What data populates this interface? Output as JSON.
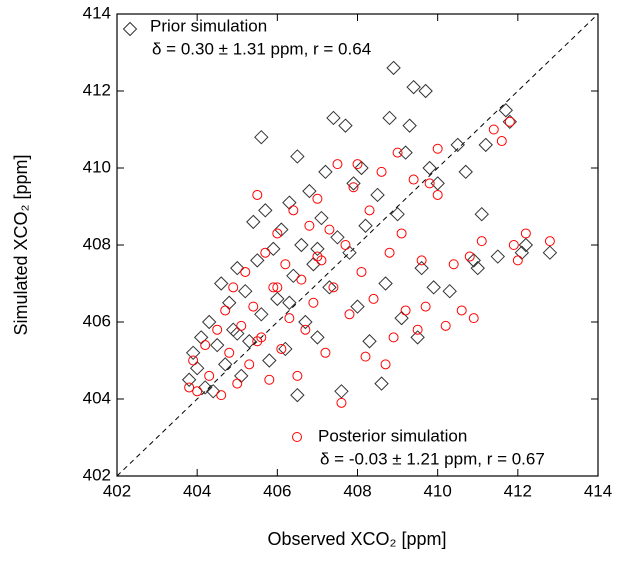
{
  "chart_data": {
    "type": "scatter",
    "xlabel": "Observed XCO₂ [ppm]",
    "ylabel": "Simulated XCO₂ [ppm]",
    "xlim": [
      402,
      414
    ],
    "ylim": [
      402,
      414
    ],
    "xticks": [
      402,
      404,
      406,
      408,
      410,
      412,
      414
    ],
    "yticks": [
      402,
      404,
      406,
      408,
      410,
      412,
      414
    ],
    "series": [
      {
        "name": "Prior simulation",
        "stats": "δ = 0.30 ± 1.31 ppm,  r = 0.64",
        "color": "#333333",
        "marker": "diamond",
        "x": [
          403.8,
          403.9,
          404.0,
          404.1,
          404.2,
          404.3,
          404.5,
          404.6,
          404.7,
          404.8,
          404.9,
          405.0,
          405.1,
          405.2,
          405.3,
          405.4,
          405.5,
          405.6,
          405.6,
          405.7,
          405.8,
          405.9,
          406.0,
          406.1,
          406.2,
          406.3,
          406.4,
          406.5,
          406.5,
          406.6,
          406.7,
          406.8,
          406.9,
          407.0,
          407.1,
          407.2,
          407.3,
          407.4,
          407.5,
          407.6,
          407.7,
          407.8,
          407.9,
          408.0,
          408.1,
          408.2,
          408.3,
          408.5,
          408.6,
          408.7,
          408.8,
          408.9,
          409.0,
          409.1,
          409.2,
          409.3,
          409.4,
          409.5,
          409.6,
          409.7,
          409.8,
          409.9,
          410.0,
          410.3,
          410.5,
          410.7,
          410.9,
          411.0,
          411.1,
          411.2,
          411.5,
          411.7,
          411.8,
          412.1,
          412.2,
          412.8,
          404.4,
          405.0,
          406.3,
          407.0
        ],
        "values": [
          404.5,
          405.2,
          404.8,
          405.6,
          404.3,
          406.0,
          405.4,
          407.0,
          404.9,
          406.5,
          405.8,
          407.4,
          404.6,
          406.8,
          405.5,
          408.6,
          407.6,
          410.8,
          406.2,
          408.9,
          405.0,
          407.9,
          406.6,
          408.4,
          405.3,
          409.1,
          407.2,
          410.3,
          404.1,
          408.0,
          406.0,
          409.4,
          407.5,
          405.6,
          408.7,
          409.9,
          406.9,
          411.3,
          408.2,
          404.2,
          411.1,
          407.8,
          409.6,
          406.4,
          410.0,
          408.5,
          405.5,
          409.3,
          404.4,
          407.0,
          411.3,
          412.6,
          408.8,
          406.1,
          410.4,
          411.1,
          412.1,
          405.6,
          407.4,
          412.0,
          410.0,
          406.9,
          409.6,
          406.8,
          410.6,
          409.9,
          407.6,
          407.4,
          408.8,
          410.6,
          407.7,
          411.5,
          411.2,
          407.8,
          408.0,
          407.8,
          404.2,
          405.7,
          406.5,
          407.9
        ]
      },
      {
        "name": "Posterior simulation",
        "stats": "δ = -0.03 ± 1.21 ppm,  r = 0.67",
        "color": "#ff0000",
        "marker": "circle",
        "x": [
          403.8,
          403.9,
          404.0,
          404.2,
          404.3,
          404.5,
          404.6,
          404.7,
          404.8,
          404.9,
          405.0,
          405.1,
          405.2,
          405.3,
          405.4,
          405.5,
          405.6,
          405.7,
          405.8,
          405.9,
          406.0,
          406.1,
          406.2,
          406.3,
          406.4,
          406.5,
          406.6,
          406.7,
          406.8,
          406.9,
          407.0,
          407.1,
          407.2,
          407.3,
          407.4,
          407.5,
          407.6,
          407.7,
          407.8,
          407.9,
          408.0,
          408.1,
          408.2,
          408.3,
          408.4,
          408.6,
          408.7,
          408.8,
          408.9,
          409.0,
          409.1,
          409.2,
          409.4,
          409.5,
          409.6,
          409.7,
          409.8,
          410.0,
          410.2,
          410.4,
          410.6,
          410.8,
          410.9,
          411.1,
          411.4,
          411.6,
          411.8,
          411.9,
          412.0,
          412.2,
          412.8,
          410.0,
          406.0,
          405.5,
          407.0
        ],
        "values": [
          404.3,
          405.0,
          404.2,
          405.4,
          404.6,
          405.8,
          404.1,
          406.3,
          405.2,
          406.9,
          404.4,
          405.9,
          407.3,
          404.9,
          406.4,
          409.3,
          405.6,
          407.8,
          404.5,
          406.9,
          408.3,
          405.3,
          407.5,
          406.1,
          408.9,
          404.6,
          407.1,
          405.8,
          408.5,
          406.5,
          409.2,
          407.6,
          405.2,
          408.4,
          406.9,
          410.1,
          403.9,
          408.0,
          406.2,
          409.5,
          410.1,
          407.3,
          405.1,
          408.9,
          406.6,
          409.9,
          404.9,
          407.8,
          405.6,
          410.4,
          408.3,
          406.3,
          409.7,
          405.8,
          407.6,
          406.4,
          409.6,
          410.5,
          405.9,
          407.5,
          406.3,
          407.7,
          406.1,
          408.1,
          411.0,
          410.7,
          411.2,
          408.0,
          407.6,
          408.3,
          408.1,
          409.3,
          406.9,
          405.5,
          407.7
        ]
      }
    ],
    "identity_line": true
  }
}
